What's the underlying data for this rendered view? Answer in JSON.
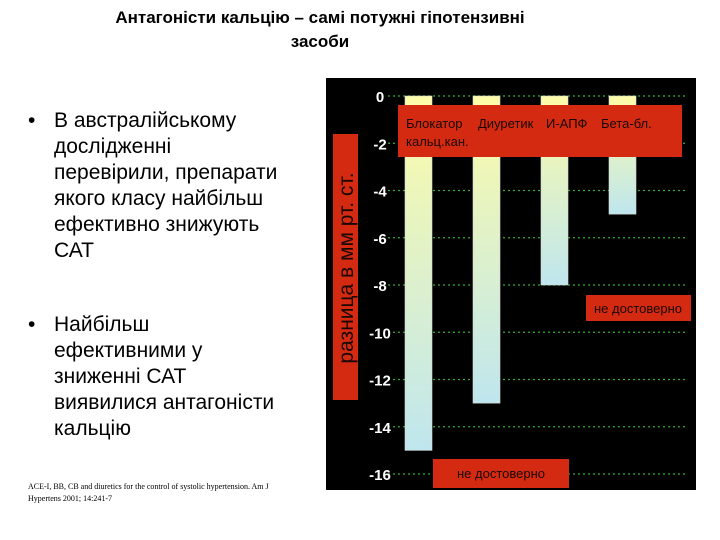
{
  "title": {
    "line1": "Антагоністи кальцію – самі потужні гіпотензивні",
    "line2": "засоби"
  },
  "bullets": [
    {
      "marker": "•",
      "text_lines": [
        "В австралійському",
        "дослідженні",
        "перевірили, препарати",
        "якого класу найбільш",
        "ефективно знижують",
        "САТ"
      ]
    },
    {
      "marker": "•",
      "text_lines": [
        "Найбільш",
        "ефективними у",
        "зниженні САТ",
        "виявилися антагоністи",
        "кальцію"
      ]
    }
  ],
  "reference": {
    "line1": "ACE-I, BB, CB and diuretics for the control of systolic hypertension. Am J",
    "line2": "Hypertens 2001; 14:241-7"
  },
  "chart_data": {
    "type": "bar",
    "ylabel": "разница в мм рт. ст.",
    "ylim": [
      -16,
      0
    ],
    "yticks": [
      "0",
      "-2",
      "-4",
      "-6",
      "-8",
      "-10",
      "-12",
      "-14",
      "-16"
    ],
    "categories": [
      "Блокатор кальц.кан.",
      "Диуретик",
      "И-АПФ",
      "Бета-бл."
    ],
    "legend_labels": [
      "Блокатор",
      "Диуретик",
      "И-АПФ",
      "Бета-бл.",
      "кальц.кан."
    ],
    "values": [
      -15,
      -13,
      -8,
      -5
    ],
    "grid": true,
    "annotations": [
      "не достоверно",
      "не достоверно"
    ],
    "colors": {
      "background": "#000000",
      "label_box": "#d42a12",
      "label_text": "#1a0800",
      "axis_text": "#ffffff",
      "gridline": "#3aa83a",
      "bar_top": "#fdfca8",
      "bar_bottom": "#bfe6ee"
    }
  }
}
